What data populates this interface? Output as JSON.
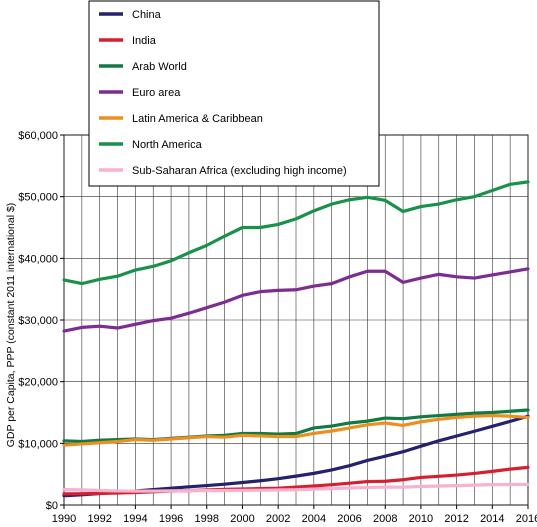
{
  "chart_data": {
    "type": "line",
    "title": "",
    "xlabel": "",
    "ylabel": "GDP per Capita, PPP (constant 2011 international $)",
    "x": [
      1990,
      1991,
      1992,
      1993,
      1994,
      1995,
      1996,
      1997,
      1998,
      1999,
      2000,
      2001,
      2002,
      2003,
      2004,
      2005,
      2006,
      2007,
      2008,
      2009,
      2010,
      2011,
      2012,
      2013,
      2014,
      2015,
      2016
    ],
    "xlim": [
      1990,
      2016
    ],
    "ylim": [
      0,
      60000
    ],
    "grid": true,
    "legend_position": "top-center",
    "x_ticks": [
      "1990",
      "1992",
      "1994",
      "1996",
      "1998",
      "2000",
      "2002",
      "2004",
      "2006",
      "2008",
      "2010",
      "2012",
      "2014",
      "2016"
    ],
    "y_ticks": [
      "$0",
      "$10,000",
      "$20,000",
      "$30,000",
      "$40,000",
      "$50,000",
      "$60,000"
    ],
    "series": [
      {
        "name": "China",
        "color": "#22226e",
        "values": [
          1500,
          1650,
          1850,
          2050,
          2280,
          2500,
          2720,
          2950,
          3150,
          3380,
          3650,
          3930,
          4270,
          4680,
          5130,
          5690,
          6380,
          7230,
          7910,
          8640,
          9540,
          10410,
          11190,
          11960,
          12760,
          13560,
          14400
        ]
      },
      {
        "name": "India",
        "color": "#d42030",
        "values": [
          1800,
          1820,
          1890,
          1950,
          2030,
          2140,
          2270,
          2330,
          2430,
          2530,
          2590,
          2670,
          2720,
          2900,
          3080,
          3290,
          3540,
          3800,
          3850,
          4100,
          4470,
          4650,
          4850,
          5120,
          5450,
          5820,
          6100
        ]
      },
      {
        "name": "Arab World",
        "color": "#117a43",
        "values": [
          10400,
          10300,
          10500,
          10600,
          10700,
          10600,
          10800,
          11000,
          11200,
          11300,
          11600,
          11600,
          11500,
          11600,
          12500,
          12800,
          13300,
          13600,
          14100,
          14000,
          14300,
          14500,
          14700,
          14900,
          15000,
          15200,
          15400
        ]
      },
      {
        "name": "Euro area",
        "color": "#7b2d91",
        "values": [
          28200,
          28800,
          29000,
          28700,
          29300,
          29900,
          30300,
          31100,
          32000,
          32900,
          34000,
          34600,
          34800,
          34900,
          35500,
          35900,
          37000,
          37900,
          37900,
          36100,
          36800,
          37400,
          37000,
          36800,
          37300,
          37800,
          38300
        ]
      },
      {
        "name": "Latin America & Caribbean",
        "color": "#ec8f1e",
        "values": [
          9700,
          9900,
          10100,
          10300,
          10600,
          10500,
          10700,
          10900,
          11100,
          11000,
          11300,
          11200,
          11100,
          11100,
          11600,
          12000,
          12500,
          13000,
          13300,
          12900,
          13500,
          13900,
          14200,
          14400,
          14500,
          14400,
          14200
        ]
      },
      {
        "name": "North America",
        "color": "#18924a",
        "values": [
          36500,
          35900,
          36600,
          37100,
          38100,
          38700,
          39600,
          40900,
          42100,
          43600,
          45000,
          45000,
          45500,
          46400,
          47700,
          48800,
          49500,
          49900,
          49400,
          47600,
          48400,
          48800,
          49500,
          50000,
          51000,
          52000,
          52400
        ]
      },
      {
        "name": "Sub-Saharan Africa (excluding high income)",
        "color": "#f6b2ce",
        "values": [
          2500,
          2450,
          2350,
          2280,
          2250,
          2260,
          2290,
          2320,
          2330,
          2350,
          2380,
          2400,
          2430,
          2470,
          2580,
          2650,
          2760,
          2850,
          2900,
          2900,
          3000,
          3080,
          3140,
          3220,
          3300,
          3330,
          3350
        ]
      }
    ]
  }
}
